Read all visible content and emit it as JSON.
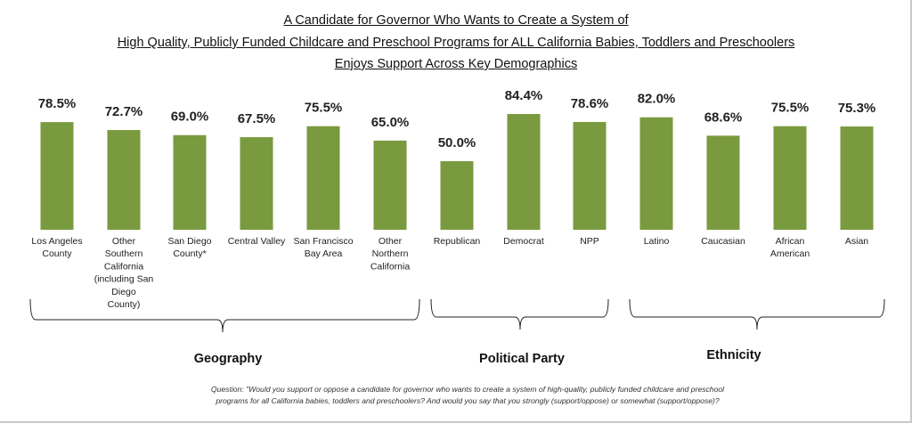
{
  "title": {
    "line1": "A Candidate for Governor Who Wants to Create a System of",
    "line2": "High Quality, Publicly Funded Childcare and Preschool Programs for ALL California Babies, Toddlers and Preschoolers",
    "line3": "Enjoys Support Across Key Demographics"
  },
  "chart_data": {
    "type": "bar",
    "title": "A Candidate for Governor Who Wants to Create a System of High Quality, Publicly Funded Childcare and Preschool Programs for ALL California Babies, Toddlers and Preschoolers Enjoys Support Across Key Demographics",
    "xlabel": "",
    "ylabel": "",
    "ylim": [
      0,
      100
    ],
    "grid": false,
    "bar_color": "#7a9a3f",
    "categories": [
      [
        "Los Angeles",
        "County"
      ],
      [
        "Other",
        "Southern",
        "California",
        "(including San",
        "Diego",
        "County)"
      ],
      [
        "San Diego",
        "County*"
      ],
      [
        "Central Valley"
      ],
      [
        "San Francisco",
        "Bay Area"
      ],
      [
        "Other",
        "Northern",
        "California"
      ],
      [
        "Republican"
      ],
      [
        "Democrat"
      ],
      [
        "NPP"
      ],
      [
        "Latino"
      ],
      [
        "Caucasian"
      ],
      [
        "African",
        "American"
      ],
      [
        "Asian"
      ]
    ],
    "values": [
      78.5,
      72.7,
      69.0,
      67.5,
      75.5,
      65.0,
      50.0,
      84.4,
      78.6,
      82.0,
      68.6,
      75.5,
      75.3
    ],
    "value_labels": [
      "78.5%",
      "72.7%",
      "69.0%",
      "67.5%",
      "75.5%",
      "65.0%",
      "50.0%",
      "84.4%",
      "78.6%",
      "82.0%",
      "68.6%",
      "75.5%",
      "75.3%"
    ],
    "groups": [
      {
        "label": "Geography",
        "first": 0,
        "last": 5
      },
      {
        "label": "Political Party",
        "first": 6,
        "last": 8
      },
      {
        "label": "Ethnicity",
        "first": 9,
        "last": 12
      }
    ]
  },
  "question": {
    "line1": "Question: \"Would you support or oppose a candidate for governor who wants to create a system of high-quality, publicly funded childcare and preschool",
    "line2": "programs for all California babies, toddlers and preschoolers? And would you say that you strongly (support/oppose) or somewhat (support/oppose)?"
  }
}
